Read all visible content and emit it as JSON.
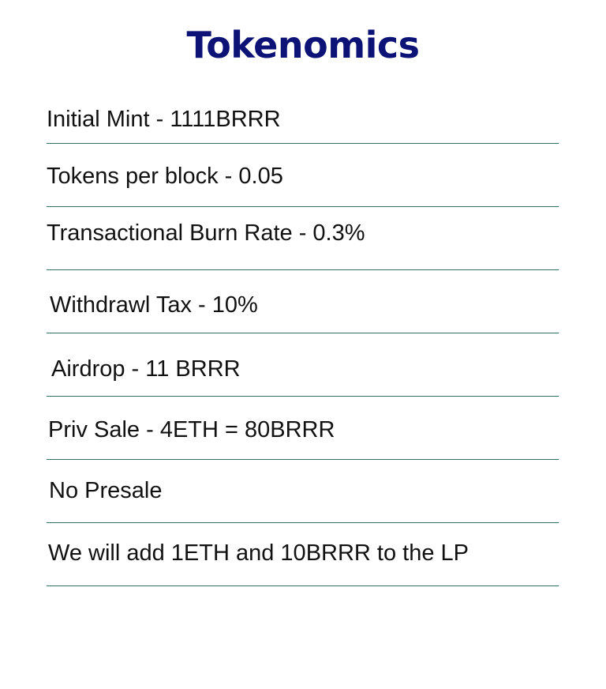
{
  "page": {
    "title": "Tokenomics",
    "items": [
      {
        "label": "Initial Mint - 1111BRRR"
      },
      {
        "label": "Tokens per block - 0.05"
      },
      {
        "label": "Transactional Burn Rate - 0.3%"
      },
      {
        "label": "Withdrawl Tax - 10%"
      },
      {
        "label": "Airdrop - 11 BRRR"
      },
      {
        "label": "Priv Sale - 4ETH = 80BRRR"
      },
      {
        "label": "No Presale"
      },
      {
        "label": "We will add 1ETH and 10BRRR to the LP"
      }
    ]
  },
  "colors": {
    "title": "#0d1277",
    "divider": "#2e7060",
    "text": "#111111",
    "background": "#ffffff"
  }
}
